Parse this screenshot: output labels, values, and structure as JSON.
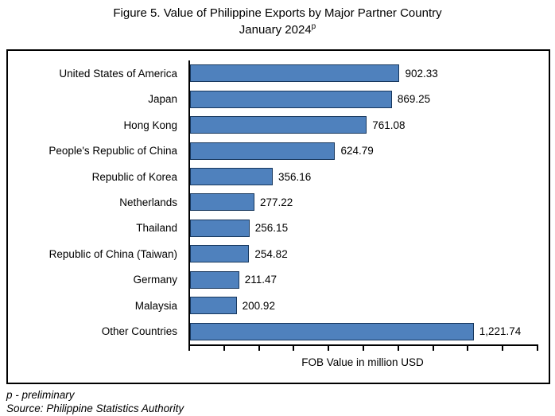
{
  "title": {
    "line1": "Figure 5. Value of Philippine Exports by Major Partner Country",
    "line2_text": "January 2024",
    "line2_superscript": "p"
  },
  "chart_data": {
    "type": "bar",
    "orientation": "horizontal",
    "categories": [
      "United States of America",
      "Japan",
      "Hong Kong",
      "People's Republic of China",
      "Republic of Korea",
      "Netherlands",
      "Thailand",
      "Republic of China (Taiwan)",
      "Germany",
      "Malaysia",
      "Other Countries"
    ],
    "values": [
      902.33,
      869.25,
      761.08,
      624.79,
      356.16,
      277.22,
      256.15,
      254.82,
      211.47,
      200.92,
      1221.74
    ],
    "value_labels": [
      "902.33",
      "869.25",
      "761.08",
      "624.79",
      "356.16",
      "277.22",
      "256.15",
      "254.82",
      "211.47",
      "200.92",
      "1,221.74"
    ],
    "xlabel": "FOB Value in million USD",
    "xlim": [
      0,
      1500
    ],
    "x_tick_count": 11,
    "x_ticks_labeled": false,
    "grid": false,
    "legend": false,
    "bar_color": "#4F81BD",
    "bar_border_color": "#17375D",
    "axis_color": "#000000"
  },
  "footer": {
    "note": "p - preliminary",
    "source": "Source: Philippine Statistics Authority"
  }
}
